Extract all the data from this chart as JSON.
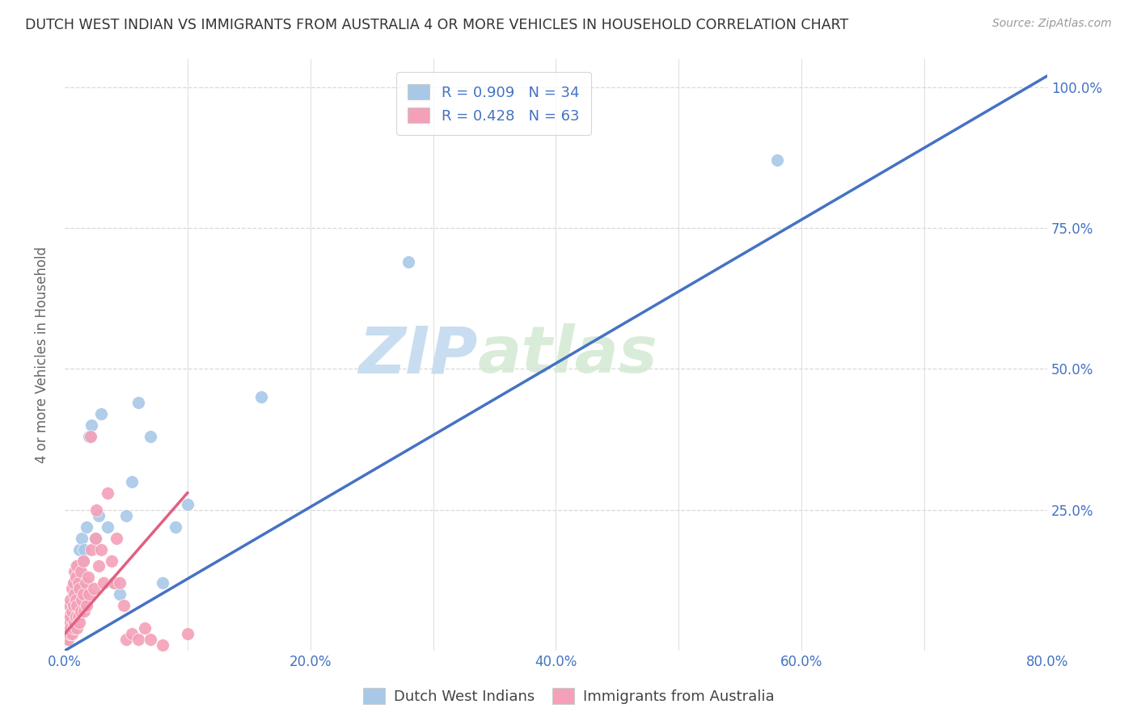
{
  "title": "DUTCH WEST INDIAN VS IMMIGRANTS FROM AUSTRALIA 4 OR MORE VEHICLES IN HOUSEHOLD CORRELATION CHART",
  "source": "Source: ZipAtlas.com",
  "ylabel": "4 or more Vehicles in Household",
  "xlim": [
    0.0,
    0.8
  ],
  "ylim": [
    0.0,
    1.05
  ],
  "xtick_labels": [
    "0.0%",
    "",
    "20.0%",
    "",
    "40.0%",
    "",
    "60.0%",
    "",
    "80.0%"
  ],
  "xtick_values": [
    0.0,
    0.1,
    0.2,
    0.3,
    0.4,
    0.5,
    0.6,
    0.7,
    0.8
  ],
  "ytick_labels": [
    "25.0%",
    "50.0%",
    "75.0%",
    "100.0%"
  ],
  "ytick_values": [
    0.25,
    0.5,
    0.75,
    1.0
  ],
  "blue_color": "#a8c8e8",
  "blue_line_color": "#4472c4",
  "pink_color": "#f4a0b8",
  "pink_line_color": "#e06080",
  "legend_text_color": "#4472c4",
  "title_color": "#333333",
  "source_color": "#999999",
  "watermark_color": "#d8e8f4",
  "grid_color": "#d8d8d8",
  "R_blue": 0.909,
  "N_blue": 34,
  "R_pink": 0.428,
  "N_pink": 63,
  "blue_scatter_x": [
    0.002,
    0.003,
    0.004,
    0.005,
    0.006,
    0.007,
    0.008,
    0.009,
    0.01,
    0.011,
    0.012,
    0.013,
    0.014,
    0.015,
    0.016,
    0.018,
    0.02,
    0.022,
    0.025,
    0.028,
    0.03,
    0.035,
    0.04,
    0.045,
    0.05,
    0.055,
    0.06,
    0.07,
    0.08,
    0.09,
    0.1,
    0.16,
    0.28,
    0.58
  ],
  "blue_scatter_y": [
    0.05,
    0.04,
    0.06,
    0.08,
    0.05,
    0.1,
    0.12,
    0.15,
    0.08,
    0.14,
    0.18,
    0.12,
    0.2,
    0.16,
    0.18,
    0.22,
    0.38,
    0.4,
    0.2,
    0.24,
    0.42,
    0.22,
    0.12,
    0.1,
    0.24,
    0.3,
    0.44,
    0.38,
    0.12,
    0.22,
    0.26,
    0.45,
    0.69,
    0.87
  ],
  "pink_scatter_x": [
    0.001,
    0.001,
    0.002,
    0.002,
    0.003,
    0.003,
    0.003,
    0.004,
    0.004,
    0.004,
    0.005,
    0.005,
    0.005,
    0.006,
    0.006,
    0.006,
    0.007,
    0.007,
    0.007,
    0.008,
    0.008,
    0.008,
    0.009,
    0.009,
    0.009,
    0.01,
    0.01,
    0.01,
    0.011,
    0.011,
    0.012,
    0.012,
    0.013,
    0.013,
    0.014,
    0.015,
    0.015,
    0.016,
    0.017,
    0.018,
    0.019,
    0.02,
    0.021,
    0.022,
    0.024,
    0.025,
    0.026,
    0.028,
    0.03,
    0.032,
    0.035,
    0.038,
    0.04,
    0.042,
    0.045,
    0.048,
    0.05,
    0.055,
    0.06,
    0.065,
    0.07,
    0.08,
    0.1
  ],
  "pink_scatter_y": [
    0.02,
    0.04,
    0.03,
    0.05,
    0.02,
    0.04,
    0.06,
    0.03,
    0.05,
    0.08,
    0.04,
    0.06,
    0.09,
    0.03,
    0.07,
    0.11,
    0.04,
    0.08,
    0.12,
    0.05,
    0.1,
    0.14,
    0.06,
    0.09,
    0.13,
    0.04,
    0.08,
    0.15,
    0.06,
    0.12,
    0.05,
    0.11,
    0.07,
    0.14,
    0.09,
    0.16,
    0.1,
    0.07,
    0.12,
    0.08,
    0.13,
    0.1,
    0.38,
    0.18,
    0.11,
    0.2,
    0.25,
    0.15,
    0.18,
    0.12,
    0.28,
    0.16,
    0.12,
    0.2,
    0.12,
    0.08,
    0.02,
    0.03,
    0.02,
    0.04,
    0.02,
    0.01,
    0.03
  ],
  "blue_line_x0": 0.0,
  "blue_line_y0": 0.0,
  "blue_line_x1": 0.8,
  "blue_line_y1": 1.02,
  "pink_line_x0": 0.0,
  "pink_line_y0": 0.03,
  "pink_line_x1": 0.1,
  "pink_line_y1": 0.28
}
